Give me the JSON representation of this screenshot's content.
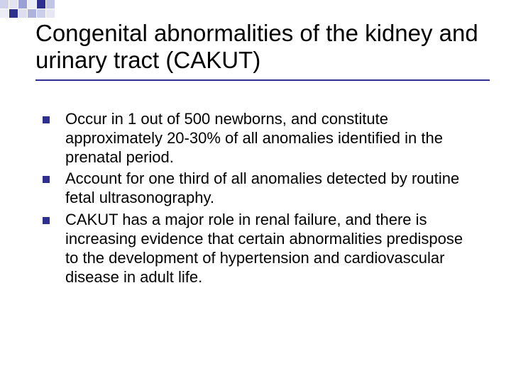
{
  "decoration": {
    "rows": [
      [
        {
          "c": "#cfd2ea",
          "o": 1
        },
        {
          "c": "#cfd2ea",
          "o": 0.6
        },
        {
          "c": "#9aa0d6",
          "o": 1
        },
        {
          "c": "#cfd2ea",
          "o": 0.4
        },
        {
          "c": "#2e2f8e",
          "o": 1
        },
        {
          "c": "#9aa0d6",
          "o": 0.6
        }
      ],
      [
        {
          "c": "#cfd2ea",
          "o": 0.4
        },
        {
          "c": "#2e2f8e",
          "o": 1
        },
        {
          "c": "#cfd2ea",
          "o": 0.7
        },
        {
          "c": "#9aa0d6",
          "o": 0.8
        },
        {
          "c": "#9aa0d6",
          "o": 0.5
        },
        {
          "c": "#cfd2ea",
          "o": 0.5
        }
      ]
    ]
  },
  "title": "Congenital abnormalities of the kidney and urinary tract (CAKUT)",
  "bullets": [
    "Occur in 1 out of 500 newborns, and constitute approximately 20-30% of all anomalies identified in the prenatal period.",
    "Account for one third of all anomalies detected by routine fetal ultrasonography.",
    "CAKUT has a major role in renal failure, and there is increasing evidence that certain abnormalities predispose to the development of hypertension and cardiovascular disease in adult life."
  ],
  "colors": {
    "accent": "#2e2f8e",
    "background": "#ffffff",
    "text": "#000000"
  },
  "typography": {
    "title_fontsize": 33,
    "body_fontsize": 22,
    "font_family": "Arial"
  }
}
